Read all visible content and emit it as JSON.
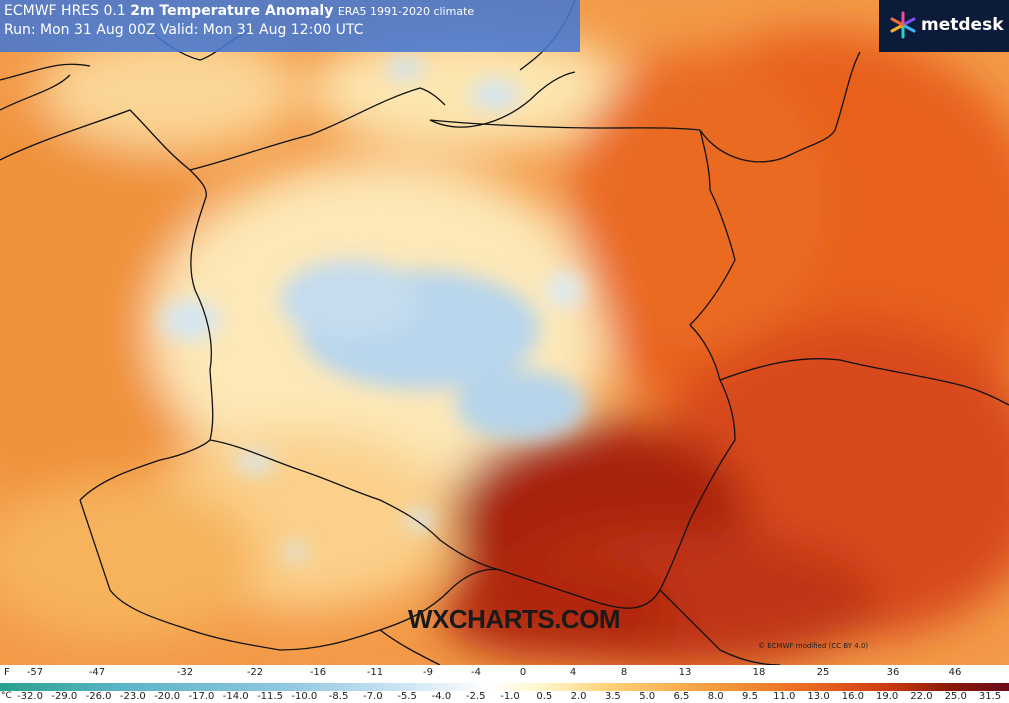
{
  "header": {
    "title_prefix": "ECMWF HRES 0.1",
    "title_main": "2m Temperature Anomaly",
    "title_suffix": "ERA5 1991-2020 climate",
    "run_line": "Run: Mon 31 Aug 00Z Valid: Mon 31 Aug 12:00 UTC"
  },
  "brand": {
    "logo_text": "metdesk",
    "logo_icon": "metdesk-star-icon"
  },
  "watermark": "WXCHARTS.COM",
  "copyright": "© ECMWF modified (CC BY 4.0)",
  "legend": {
    "f_unit": "F",
    "c_unit": "°C",
    "f_labels": [
      "-57",
      "-47",
      "-32",
      "-22",
      "-16",
      "-11",
      "-9",
      "-4",
      "0",
      "4",
      "8",
      "13",
      "18",
      "25",
      "36",
      "46"
    ],
    "c_labels": [
      "-32.0",
      "-29.0",
      "-26.0",
      "-23.0",
      "-20.0",
      "-17.0",
      "-14.0",
      "-11.5",
      "-10.0",
      "-8.5",
      "-7.0",
      "-5.5",
      "-4.0",
      "-2.5",
      "-1.0",
      "0.5",
      "2.0",
      "3.5",
      "5.0",
      "6.5",
      "8.0",
      "9.5",
      "11.0",
      "13.0",
      "16.0",
      "19.0",
      "22.0",
      "25.0",
      "31.5"
    ]
  },
  "colors": {
    "header_bg": "#4678d2",
    "logo_bg": "#0d1b3a",
    "warm": "#e8641c",
    "cold": "#a8cce4"
  }
}
